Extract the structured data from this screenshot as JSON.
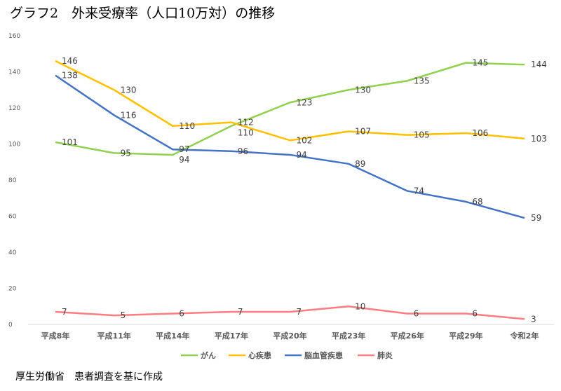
{
  "title": "グラフ2　外来受療率（人口10万対）の推移",
  "source": "厚生労働省　患者調査を基に作成",
  "chart_data": {
    "type": "line",
    "title": "グラフ2　外来受療率（人口10万対）の推移",
    "categories": [
      "平成8年",
      "平成11年",
      "平成14年",
      "平成17年",
      "平成20年",
      "平成23年",
      "平成26年",
      "平成29年",
      "令和2年"
    ],
    "ylim": [
      0,
      160
    ],
    "yticks": [
      0,
      20,
      40,
      60,
      80,
      100,
      120,
      140,
      160
    ],
    "grid": false,
    "legend": "bottom",
    "series": [
      {
        "name": "がん",
        "color": "#92d050",
        "values": [
          101,
          95,
          94,
          110,
          123,
          130,
          135,
          145,
          144
        ]
      },
      {
        "name": "心疾患",
        "color": "#ffc000",
        "values": [
          146,
          130,
          110,
          112,
          102,
          107,
          105,
          106,
          103
        ]
      },
      {
        "name": "脳血管疾患",
        "color": "#4472c4",
        "values": [
          138,
          116,
          97,
          96,
          94,
          89,
          74,
          68,
          59
        ]
      },
      {
        "name": "肺炎",
        "color": "#ff7c80",
        "values": [
          7,
          5,
          6,
          7,
          7,
          10,
          6,
          6,
          3
        ]
      }
    ]
  }
}
